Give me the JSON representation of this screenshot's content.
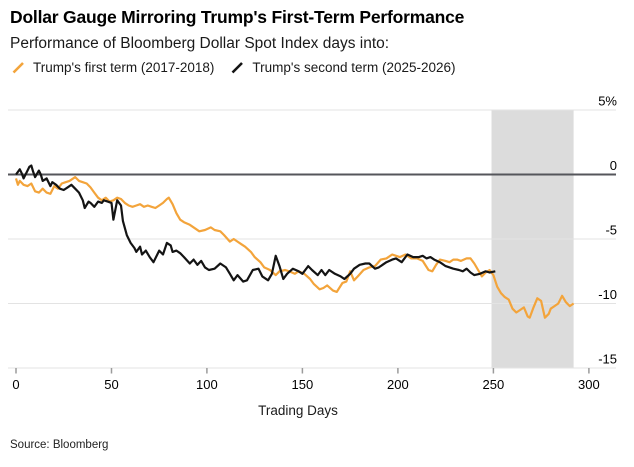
{
  "header": {
    "title": "Dollar Gauge Mirroring Trump's First-Term Performance",
    "subtitle": "Performance of Bloomberg Dollar Spot Index days into:"
  },
  "legend": {
    "items": [
      {
        "label": "Trump's first term (2017-2018)",
        "color": "#F3A43B"
      },
      {
        "label": "Trump's second term (2025-2026)",
        "color": "#141414"
      }
    ]
  },
  "footer": {
    "source": "Source: Bloomberg"
  },
  "chart_data": {
    "type": "line",
    "title": "Dollar Gauge Mirroring Trump's First-Term Performance",
    "subtitle": "Performance of Bloomberg Dollar Spot Index days into:",
    "xlabel": "Trading Days",
    "ylabel": "",
    "grid": true,
    "legend_position": "top",
    "xlim": [
      0,
      314
    ],
    "ylim": [
      -15,
      5
    ],
    "x_ticks": [
      0,
      50,
      100,
      150,
      200,
      250,
      300
    ],
    "y_ticks": [
      {
        "label": "5%",
        "value": 5
      },
      {
        "label": "0",
        "value": 0
      },
      {
        "label": "-5",
        "value": -5
      },
      {
        "label": "-10",
        "value": -10
      },
      {
        "label": "-15",
        "value": -15
      }
    ],
    "shaded_region": {
      "x0": 249,
      "x1": 292,
      "note": "highlighted band after second-term data ends"
    },
    "colors": {
      "band": "#DCDCDC",
      "grid": "#E3E3E3",
      "zero_line": "#55565B",
      "tick": "#9B9B9B",
      "first_term": "#F3A43B",
      "second_term": "#141414"
    },
    "series": [
      {
        "name": "Trump's first term (2017-2018)",
        "color": "#F3A43B",
        "points": [
          [
            0,
            -0.3
          ],
          [
            1,
            -0.8
          ],
          [
            2,
            -0.5
          ],
          [
            4,
            -0.8
          ],
          [
            6,
            -0.9
          ],
          [
            8,
            -0.7
          ],
          [
            10,
            -1.3
          ],
          [
            12,
            -1.4
          ],
          [
            14,
            -1.1
          ],
          [
            16,
            -1.4
          ],
          [
            18,
            -1.5
          ],
          [
            20,
            -0.9
          ],
          [
            22,
            -1.1
          ],
          [
            24,
            -0.7
          ],
          [
            26,
            -0.6
          ],
          [
            28,
            -0.5
          ],
          [
            31,
            -0.2
          ],
          [
            33,
            -0.5
          ],
          [
            35,
            -0.6
          ],
          [
            37,
            -0.7
          ],
          [
            39,
            -1.0
          ],
          [
            41,
            -1.4
          ],
          [
            43,
            -1.8
          ],
          [
            45,
            -2.0
          ],
          [
            47,
            -1.8
          ],
          [
            49,
            -2.1
          ],
          [
            51,
            -2.0
          ],
          [
            53,
            -1.8
          ],
          [
            55,
            -1.9
          ],
          [
            57,
            -2.2
          ],
          [
            59,
            -2.4
          ],
          [
            61,
            -2.5
          ],
          [
            63,
            -2.4
          ],
          [
            65,
            -2.3
          ],
          [
            67,
            -2.5
          ],
          [
            69,
            -2.4
          ],
          [
            71,
            -2.5
          ],
          [
            73,
            -2.6
          ],
          [
            75,
            -2.4
          ],
          [
            77,
            -2.2
          ],
          [
            79,
            -1.9
          ],
          [
            80,
            -1.8
          ],
          [
            82,
            -2.3
          ],
          [
            84,
            -3.0
          ],
          [
            86,
            -3.5
          ],
          [
            88,
            -3.7
          ],
          [
            91,
            -3.9
          ],
          [
            94,
            -4.2
          ],
          [
            96,
            -4.4
          ],
          [
            99,
            -4.3
          ],
          [
            102,
            -4.1
          ],
          [
            104,
            -4.3
          ],
          [
            107,
            -4.4
          ],
          [
            109,
            -4.7
          ],
          [
            112,
            -5.2
          ],
          [
            114,
            -5.0
          ],
          [
            116,
            -5.2
          ],
          [
            118,
            -5.4
          ],
          [
            120,
            -5.6
          ],
          [
            123,
            -6.0
          ],
          [
            125,
            -6.4
          ],
          [
            128,
            -6.8
          ],
          [
            130,
            -7.2
          ],
          [
            133,
            -7.4
          ],
          [
            136,
            -7.8
          ],
          [
            138,
            -7.5
          ],
          [
            141,
            -7.4
          ],
          [
            143,
            -7.5
          ],
          [
            146,
            -7.7
          ],
          [
            148,
            -7.5
          ],
          [
            151,
            -7.7
          ],
          [
            154,
            -8.1
          ],
          [
            156,
            -8.5
          ],
          [
            159,
            -8.9
          ],
          [
            161,
            -8.8
          ],
          [
            163,
            -8.6
          ],
          [
            166,
            -9.0
          ],
          [
            168,
            -9.1
          ],
          [
            171,
            -8.4
          ],
          [
            173,
            -8.3
          ],
          [
            175,
            -7.5
          ],
          [
            177,
            -8.2
          ],
          [
            179,
            -7.9
          ],
          [
            182,
            -7.4
          ],
          [
            185,
            -7.2
          ],
          [
            188,
            -7.1
          ],
          [
            191,
            -6.6
          ],
          [
            194,
            -6.5
          ],
          [
            197,
            -6.2
          ],
          [
            199,
            -6.3
          ],
          [
            201,
            -6.4
          ],
          [
            204,
            -6.2
          ],
          [
            207,
            -6.5
          ],
          [
            210,
            -6.5
          ],
          [
            213,
            -6.7
          ],
          [
            216,
            -7.4
          ],
          [
            218,
            -7.5
          ],
          [
            220,
            -7.0
          ],
          [
            222,
            -6.6
          ],
          [
            225,
            -6.7
          ],
          [
            227,
            -6.8
          ],
          [
            229,
            -6.6
          ],
          [
            231,
            -6.6
          ],
          [
            233,
            -6.7
          ],
          [
            236,
            -6.5
          ],
          [
            238,
            -6.5
          ],
          [
            240,
            -6.9
          ],
          [
            242,
            -7.4
          ],
          [
            244,
            -7.9
          ],
          [
            246,
            -7.6
          ],
          [
            248,
            -7.4
          ],
          [
            250,
            -7.8
          ],
          [
            252,
            -8.7
          ],
          [
            254,
            -9.2
          ],
          [
            256,
            -9.5
          ],
          [
            258,
            -9.7
          ],
          [
            260,
            -10.4
          ],
          [
            262,
            -10.7
          ],
          [
            264,
            -10.5
          ],
          [
            266,
            -10.3
          ],
          [
            268,
            -11.0
          ],
          [
            269,
            -11.1
          ],
          [
            271,
            -10.3
          ],
          [
            273,
            -9.6
          ],
          [
            275,
            -9.8
          ],
          [
            277,
            -11.1
          ],
          [
            279,
            -10.8
          ],
          [
            280,
            -10.4
          ],
          [
            282,
            -10.2
          ],
          [
            284,
            -10.0
          ],
          [
            286,
            -9.4
          ],
          [
            288,
            -9.9
          ],
          [
            290,
            -10.2
          ],
          [
            292,
            -10.0
          ]
        ]
      },
      {
        "name": "Trump's second term (2025-2026)",
        "color": "#141414",
        "points": [
          [
            0,
            0.0
          ],
          [
            1,
            0.2
          ],
          [
            2,
            0.4
          ],
          [
            3,
            0.1
          ],
          [
            4,
            -0.3
          ],
          [
            6,
            0.3
          ],
          [
            7,
            0.6
          ],
          [
            8,
            0.7
          ],
          [
            9,
            0.2
          ],
          [
            10,
            -0.2
          ],
          [
            12,
            0.3
          ],
          [
            13,
            0.0
          ],
          [
            14,
            -0.5
          ],
          [
            16,
            -0.3
          ],
          [
            18,
            -0.9
          ],
          [
            19,
            -0.6
          ],
          [
            21,
            -0.8
          ],
          [
            23,
            -1.1
          ],
          [
            25,
            -1.2
          ],
          [
            27,
            -1.0
          ],
          [
            29,
            -0.8
          ],
          [
            31,
            -1.1
          ],
          [
            33,
            -1.4
          ],
          [
            35,
            -2.0
          ],
          [
            36,
            -2.6
          ],
          [
            38,
            -2.1
          ],
          [
            39,
            -2.2
          ],
          [
            41,
            -2.5
          ],
          [
            43,
            -2.1
          ],
          [
            45,
            -2.2
          ],
          [
            46,
            -2.0
          ],
          [
            48,
            -2.1
          ],
          [
            50,
            -2.2
          ],
          [
            51,
            -3.5
          ],
          [
            53,
            -2.0
          ],
          [
            55,
            -2.4
          ],
          [
            56,
            -3.6
          ],
          [
            58,
            -4.7
          ],
          [
            60,
            -5.3
          ],
          [
            62,
            -5.7
          ],
          [
            63,
            -6.0
          ],
          [
            65,
            -5.6
          ],
          [
            66,
            -6.2
          ],
          [
            68,
            -5.9
          ],
          [
            70,
            -6.4
          ],
          [
            72,
            -6.8
          ],
          [
            74,
            -6.2
          ],
          [
            75,
            -5.9
          ],
          [
            77,
            -6.2
          ],
          [
            79,
            -5.3
          ],
          [
            81,
            -5.5
          ],
          [
            82,
            -6.0
          ],
          [
            84,
            -5.9
          ],
          [
            86,
            -6.1
          ],
          [
            88,
            -6.4
          ],
          [
            91,
            -6.9
          ],
          [
            93,
            -6.6
          ],
          [
            95,
            -7.0
          ],
          [
            97,
            -6.7
          ],
          [
            99,
            -7.2
          ],
          [
            101,
            -7.4
          ],
          [
            104,
            -7.3
          ],
          [
            107,
            -6.9
          ],
          [
            110,
            -7.2
          ],
          [
            112,
            -7.7
          ],
          [
            114,
            -8.2
          ],
          [
            116,
            -7.8
          ],
          [
            119,
            -8.3
          ],
          [
            121,
            -8.2
          ],
          [
            124,
            -7.4
          ],
          [
            127,
            -7.3
          ],
          [
            129,
            -7.9
          ],
          [
            132,
            -8.2
          ],
          [
            134,
            -7.7
          ],
          [
            136,
            -6.3
          ],
          [
            138,
            -7.1
          ],
          [
            140,
            -8.1
          ],
          [
            142,
            -7.7
          ],
          [
            145,
            -7.3
          ],
          [
            148,
            -7.5
          ],
          [
            150,
            -7.7
          ],
          [
            153,
            -7.1
          ],
          [
            155,
            -7.4
          ],
          [
            158,
            -7.8
          ],
          [
            160,
            -7.4
          ],
          [
            162,
            -7.8
          ],
          [
            164,
            -7.4
          ],
          [
            167,
            -7.7
          ],
          [
            170,
            -7.9
          ],
          [
            172,
            -8.1
          ],
          [
            175,
            -7.7
          ],
          [
            177,
            -7.3
          ],
          [
            180,
            -7.0
          ],
          [
            183,
            -6.9
          ],
          [
            185,
            -6.9
          ],
          [
            188,
            -7.3
          ],
          [
            190,
            -7.2
          ],
          [
            194,
            -6.8
          ],
          [
            197,
            -6.6
          ],
          [
            199,
            -6.5
          ],
          [
            202,
            -6.8
          ],
          [
            205,
            -6.2
          ],
          [
            208,
            -6.4
          ],
          [
            211,
            -6.4
          ],
          [
            213,
            -6.3
          ],
          [
            215,
            -6.5
          ],
          [
            217,
            -6.4
          ],
          [
            219,
            -6.6
          ],
          [
            222,
            -6.8
          ],
          [
            225,
            -7.1
          ],
          [
            229,
            -7.3
          ],
          [
            232,
            -7.4
          ],
          [
            234,
            -7.5
          ],
          [
            236,
            -7.3
          ],
          [
            238,
            -7.6
          ],
          [
            240,
            -7.8
          ],
          [
            243,
            -7.7
          ],
          [
            246,
            -7.5
          ],
          [
            248,
            -7.6
          ],
          [
            251,
            -7.5
          ]
        ]
      }
    ]
  }
}
